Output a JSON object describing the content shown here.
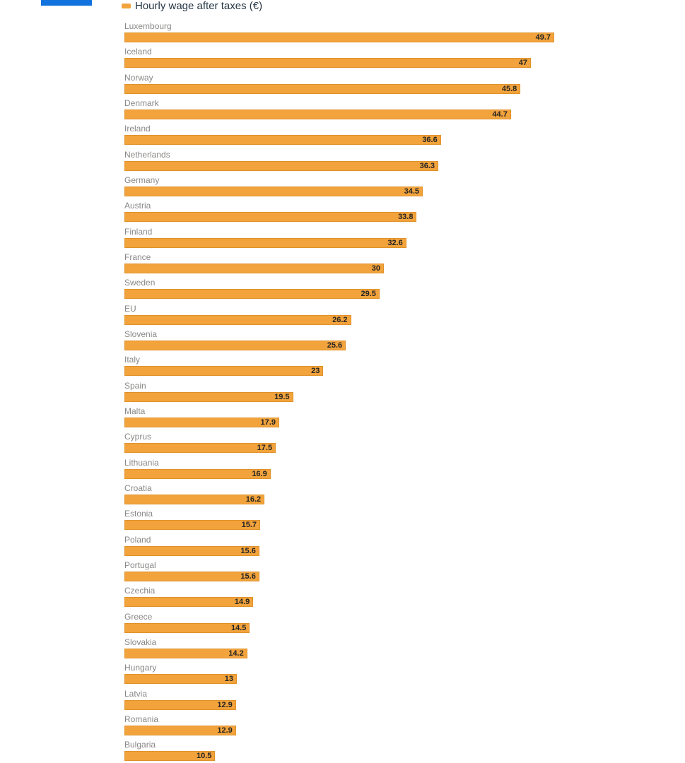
{
  "page": {
    "background": "#ffffff"
  },
  "decor": {
    "blue_bar_color": "#1272DE"
  },
  "legend": {
    "label": "Hourly wage after taxes (€)",
    "marker_color": "#F2A33C",
    "text_color": "#253645"
  },
  "chart_data": {
    "type": "bar",
    "orientation": "horizontal",
    "title": "",
    "legend": "Hourly wage after taxes (€)",
    "legend_position": "top",
    "grid": false,
    "xlim": [
      0,
      49.7
    ],
    "bar_color": "#F2A33C",
    "bar_border_color": "#E0912A",
    "category_label_color": "#8A8886",
    "value_label_color": "#252423",
    "categories": [
      "Luxembourg",
      "Iceland",
      "Norway",
      "Denmark",
      "Ireland",
      "Netherlands",
      "Germany",
      "Austria",
      "Finland",
      "France",
      "Sweden",
      "EU",
      "Slovenia",
      "Italy",
      "Spain",
      "Malta",
      "Cyprus",
      "Lithuania",
      "Croatia",
      "Estonia",
      "Poland",
      "Portugal",
      "Czechia",
      "Greece",
      "Slovakia",
      "Hungary",
      "Latvia",
      "Romania",
      "Bulgaria"
    ],
    "values": [
      49.7,
      47,
      45.8,
      44.7,
      36.6,
      36.3,
      34.5,
      33.8,
      32.6,
      30,
      29.5,
      26.2,
      25.6,
      23,
      19.5,
      17.9,
      17.5,
      16.9,
      16.2,
      15.7,
      15.6,
      15.6,
      14.9,
      14.5,
      14.2,
      13,
      12.9,
      12.9,
      10.5
    ]
  }
}
